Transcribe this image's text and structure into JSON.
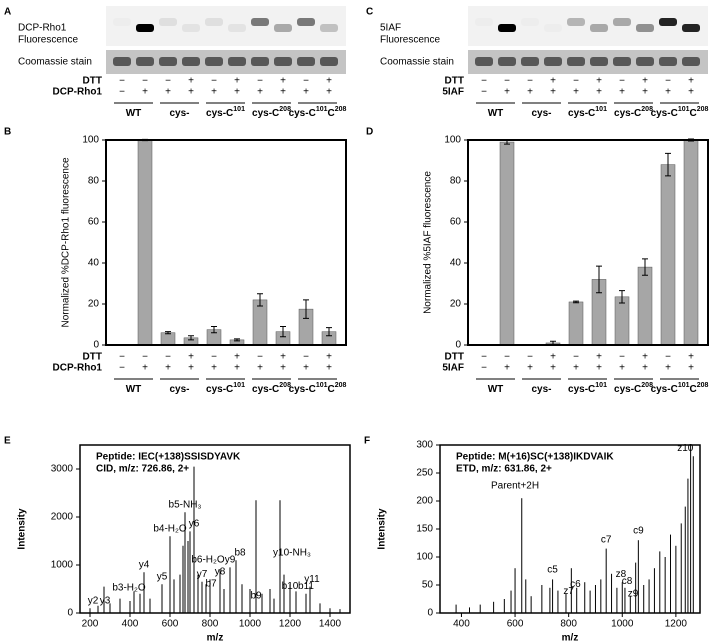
{
  "gels": [
    {
      "letter": "A",
      "fluorescence_label": [
        "DCP-Rho1",
        "Fluorescence"
      ],
      "stain_label": "Coomassie stain",
      "rows": [
        {
          "name": "DTT",
          "signs": [
            "−",
            "−",
            "−",
            "+",
            "−",
            "+",
            "−",
            "+",
            "−",
            "+"
          ]
        },
        {
          "name": "DCP-Rho1",
          "signs": [
            "−",
            "+",
            "+",
            "+",
            "+",
            "+",
            "+",
            "+",
            "+",
            "+"
          ]
        }
      ],
      "groups": [
        {
          "text": "WT"
        },
        {
          "text": "cys-"
        },
        {
          "text": "cys-C",
          "sup": "101"
        },
        {
          "text": "cys-C",
          "sup": "208"
        },
        {
          "text": "cys-C",
          "sup": "101",
          "text2": "C",
          "sup2": "208"
        }
      ]
    },
    {
      "letter": "C",
      "fluorescence_label": [
        "5IAF",
        "Fluorescence"
      ],
      "stain_label": "Coomassie stain",
      "rows": [
        {
          "name": "DTT",
          "signs": [
            "−",
            "−",
            "−",
            "+",
            "−",
            "+",
            "−",
            "+",
            "−",
            "+"
          ]
        },
        {
          "name": "5IAF",
          "signs": [
            "−",
            "+",
            "+",
            "+",
            "+",
            "+",
            "+",
            "+",
            "+",
            "+"
          ]
        }
      ],
      "groups": [
        {
          "text": "WT"
        },
        {
          "text": "cys-"
        },
        {
          "text": "cys-C",
          "sup": "101"
        },
        {
          "text": "cys-C",
          "sup": "208"
        },
        {
          "text": "cys-C",
          "sup": "101",
          "text2": "C",
          "sup2": "208"
        }
      ]
    }
  ],
  "chart_data": [
    {
      "type": "bar",
      "letter": "B",
      "ylabel": "Normalized %DCP-Rho1 fluorescence",
      "color": "#a6a6a6",
      "values": [
        0,
        100,
        6,
        3.5,
        7.5,
        2.5,
        22,
        6.5,
        17.5,
        6.5
      ],
      "errors": [
        0,
        0.3,
        0.5,
        1,
        1.5,
        0.5,
        3,
        2.5,
        4.5,
        2
      ],
      "ylim": [
        0,
        100
      ],
      "yticks": [
        0,
        20,
        40,
        60,
        80,
        100
      ],
      "rows": [
        {
          "name": "DTT",
          "signs": [
            "−",
            "−",
            "−",
            "+",
            "−",
            "+",
            "−",
            "+",
            "−",
            "+"
          ]
        },
        {
          "name": "DCP-Rho1",
          "signs": [
            "−",
            "+",
            "+",
            "+",
            "+",
            "+",
            "+",
            "+",
            "+",
            "+"
          ]
        }
      ],
      "groups": [
        {
          "text": "WT"
        },
        {
          "text": "cys-"
        },
        {
          "text": "cys-C",
          "sup": "101"
        },
        {
          "text": "cys-C",
          "sup": "208"
        },
        {
          "text": "cys-C",
          "sup": "101",
          "text2": "C",
          "sup2": "208"
        }
      ]
    },
    {
      "type": "bar",
      "letter": "D",
      "ylabel": "Normalized %5IAF fluorescence",
      "color": "#a6a6a6",
      "values": [
        0,
        99,
        0,
        1,
        21,
        32,
        23.5,
        38,
        88,
        100
      ],
      "errors": [
        0,
        1,
        0,
        0.8,
        0.4,
        6.5,
        3,
        4,
        5.5,
        0.5
      ],
      "ylim": [
        0,
        100
      ],
      "yticks": [
        0,
        20,
        40,
        60,
        80,
        100
      ],
      "rows": [
        {
          "name": "DTT",
          "signs": [
            "−",
            "−",
            "−",
            "+",
            "−",
            "+",
            "−",
            "+",
            "−",
            "+"
          ]
        },
        {
          "name": "5IAF",
          "signs": [
            "−",
            "+",
            "+",
            "+",
            "+",
            "+",
            "+",
            "+",
            "+",
            "+"
          ]
        }
      ],
      "groups": [
        {
          "text": "WT"
        },
        {
          "text": "cys-"
        },
        {
          "text": "cys-C",
          "sup": "101"
        },
        {
          "text": "cys-C",
          "sup": "208"
        },
        {
          "text": "cys-C",
          "sup": "101",
          "text2": "C",
          "sup2": "208"
        }
      ]
    },
    {
      "type": "spectrum",
      "letter": "E",
      "info": [
        "Peptide: IEC(+138)SSISDYAVK",
        "CID, m/z: 726.86, 2+"
      ],
      "xlabel": "m/z",
      "ylabel": "Intensity",
      "color": "#000000",
      "x": [
        200,
        240,
        270,
        300,
        350,
        400,
        420,
        450,
        470,
        500,
        560,
        600,
        620,
        650,
        665,
        675,
        690,
        700,
        720,
        740,
        760,
        780,
        800,
        850,
        870,
        900,
        930,
        960,
        1000,
        1030,
        1060,
        1100,
        1120,
        1150,
        1170,
        1200,
        1230,
        1280,
        1300,
        1350,
        1400,
        1450
      ],
      "values": [
        100,
        150,
        550,
        200,
        300,
        250,
        450,
        400,
        850,
        300,
        600,
        1600,
        700,
        800,
        1400,
        2100,
        1500,
        1700,
        3050,
        800,
        650,
        600,
        700,
        900,
        500,
        950,
        1100,
        600,
        500,
        2350,
        400,
        500,
        300,
        2350,
        800,
        600,
        450,
        400,
        550,
        200,
        100,
        80
      ],
      "annotations": [
        {
          "text": "y2",
          "x": 215,
          "y": 150
        },
        {
          "text": "y3",
          "x": 275,
          "y": 150
        },
        {
          "text": "b3-H₂O",
          "x": 395,
          "y": 420
        },
        {
          "text": "y4",
          "x": 470,
          "y": 900
        },
        {
          "text": "b4-H₂O",
          "x": 600,
          "y": 1650
        },
        {
          "text": "y5",
          "x": 560,
          "y": 650
        },
        {
          "text": "b5-NH₃",
          "x": 675,
          "y": 2150
        },
        {
          "text": "y6",
          "x": 720,
          "y": 1750
        },
        {
          "text": "b6-H₂O",
          "x": 790,
          "y": 1000
        },
        {
          "text": "y7",
          "x": 760,
          "y": 700
        },
        {
          "text": "b7",
          "x": 805,
          "y": 500
        },
        {
          "text": "y8",
          "x": 850,
          "y": 750
        },
        {
          "text": "y9",
          "x": 900,
          "y": 1000
        },
        {
          "text": "b8",
          "x": 950,
          "y": 1150
        },
        {
          "text": "b9",
          "x": 1030,
          "y": 250
        },
        {
          "text": "y10-NH₃",
          "x": 1210,
          "y": 1150
        },
        {
          "text": "b10",
          "x": 1200,
          "y": 450
        },
        {
          "text": "b11",
          "x": 1280,
          "y": 450
        },
        {
          "text": "y11",
          "x": 1310,
          "y": 600
        }
      ],
      "xlim": [
        150,
        1500
      ],
      "xticks": [
        200,
        400,
        600,
        800,
        1000,
        1200,
        1400
      ],
      "ylim": [
        0,
        3500
      ],
      "yticks": [
        0,
        1000,
        2000,
        3000
      ]
    },
    {
      "type": "spectrum",
      "letter": "F",
      "info": [
        "Peptide: M(+16)SC(+138)IKDVAIK",
        "ETD, m/z: 631.86, 2+"
      ],
      "xlabel": "m/z",
      "ylabel": "Intensity",
      "color": "#000000",
      "x": [
        380,
        430,
        470,
        520,
        560,
        585,
        600,
        625,
        640,
        660,
        700,
        730,
        740,
        760,
        790,
        810,
        830,
        860,
        880,
        900,
        920,
        940,
        960,
        980,
        1000,
        1010,
        1030,
        1050,
        1060,
        1080,
        1100,
        1120,
        1140,
        1160,
        1180,
        1200,
        1220,
        1235,
        1245,
        1255,
        1265
      ],
      "values": [
        15,
        10,
        15,
        20,
        25,
        40,
        80,
        205,
        60,
        30,
        50,
        45,
        60,
        40,
        35,
        80,
        45,
        55,
        40,
        50,
        60,
        115,
        70,
        45,
        55,
        45,
        30,
        90,
        130,
        50,
        60,
        80,
        110,
        100,
        140,
        120,
        160,
        190,
        240,
        300,
        280
      ],
      "annotations": [
        {
          "text": "Parent+2H",
          "x": 600,
          "y": 218
        },
        {
          "text": "c5",
          "x": 740,
          "y": 68
        },
        {
          "text": "z7",
          "x": 800,
          "y": 30
        },
        {
          "text": "c6",
          "x": 825,
          "y": 42
        },
        {
          "text": "c7",
          "x": 940,
          "y": 122
        },
        {
          "text": "z8",
          "x": 995,
          "y": 60
        },
        {
          "text": "c8",
          "x": 1018,
          "y": 48
        },
        {
          "text": "z9",
          "x": 1040,
          "y": 25
        },
        {
          "text": "c9",
          "x": 1060,
          "y": 138
        },
        {
          "text": "z10",
          "x": 1235,
          "y": 285
        }
      ],
      "xlim": [
        320,
        1290
      ],
      "xticks": [
        400,
        600,
        800,
        1000,
        1200
      ],
      "ylim": [
        0,
        300
      ],
      "yticks": [
        0,
        50,
        100,
        150,
        200,
        250,
        300
      ]
    }
  ]
}
